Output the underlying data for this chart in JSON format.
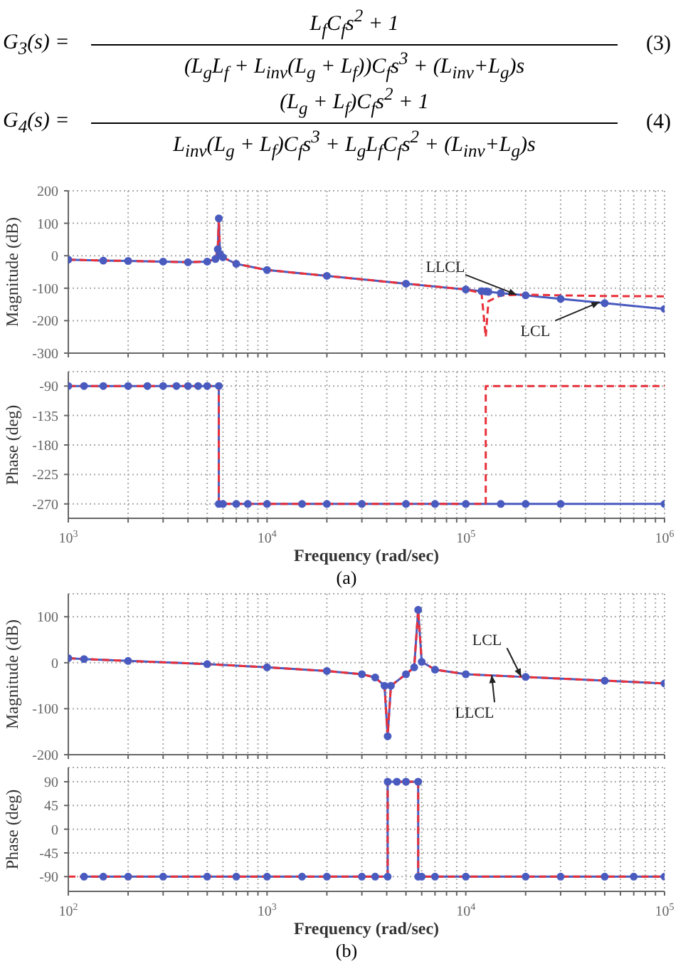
{
  "chart_data": [
    {
      "type": "line",
      "ylabel": "Magnitude (dB)",
      "log": "x",
      "grid": true,
      "tick_labels": "y",
      "xlim": [
        1000,
        1000000
      ],
      "ylim": [
        -300,
        200
      ],
      "yticks": [
        -300,
        -200,
        -100,
        0,
        100,
        200
      ],
      "xticks": [
        {
          "value": 1000,
          "label": null
        },
        {
          "value": 2000,
          "label": null
        },
        {
          "value": 3000,
          "label": null
        },
        {
          "value": 4000,
          "label": null
        },
        {
          "value": 5000,
          "label": null
        },
        {
          "value": 6000,
          "label": null
        },
        {
          "value": 7000,
          "label": null
        },
        {
          "value": 8000,
          "label": null
        },
        {
          "value": 9000,
          "label": null
        },
        {
          "value": 10000,
          "label": null
        },
        {
          "value": 20000,
          "label": null
        },
        {
          "value": 30000,
          "label": null
        },
        {
          "value": 40000,
          "label": null
        },
        {
          "value": 50000,
          "label": null
        },
        {
          "value": 60000,
          "label": null
        },
        {
          "value": 70000,
          "label": null
        },
        {
          "value": 80000,
          "label": null
        },
        {
          "value": 90000,
          "label": null
        },
        {
          "value": 100000,
          "label": null
        },
        {
          "value": 200000,
          "label": null
        },
        {
          "value": 300000,
          "label": null
        },
        {
          "value": 400000,
          "label": null
        },
        {
          "value": 500000,
          "label": null
        },
        {
          "value": 600000,
          "label": null
        },
        {
          "value": 700000,
          "label": null
        },
        {
          "value": 800000,
          "label": null
        },
        {
          "value": 900000,
          "label": null
        },
        {
          "value": 1000000,
          "label": null
        }
      ],
      "series": [
        {
          "color": "#4a5bbf",
          "line_style": "solid",
          "marker": "circle",
          "x": [
            1000,
            1500,
            2000,
            3000,
            4000,
            5000,
            5500,
            5650,
            5720,
            5800,
            6000,
            7000,
            10000,
            20000,
            50000,
            100000,
            120000,
            126000,
            130000,
            150000,
            200000,
            300000,
            500000,
            1000000
          ],
          "values": [
            -12,
            -15,
            -16,
            -18,
            -20,
            -18,
            -10,
            20,
            115,
            5,
            -5,
            -25,
            -44,
            -62,
            -86,
            -104,
            -109,
            -110,
            -111,
            -115,
            -122,
            -133,
            -146,
            -164
          ]
        },
        {
          "color": "#e8303a",
          "line_style": "dashed",
          "marker": "none",
          "x": [
            1000,
            1500,
            2000,
            3000,
            4000,
            5000,
            5500,
            5650,
            5720,
            5800,
            6000,
            7000,
            10000,
            20000,
            50000,
            100000,
            120000,
            126000,
            130000,
            150000,
            200000,
            300000,
            500000,
            1000000
          ],
          "values": [
            -12,
            -15,
            -16,
            -18,
            -20,
            -18,
            -10,
            20,
            115,
            5,
            -5,
            -25,
            -44,
            -62,
            -86,
            -104,
            -115,
            -250,
            -140,
            -122,
            -120,
            -122,
            -124,
            -125
          ]
        }
      ],
      "annotations": [
        "G$_{3}$(s) =",
        "L$_{f}$C$_{f}$s$^{2}$ + 1",
        "(L$_{g}$L$_{f}$ + L$_{inv}$(L$_{g}$ + L$_{f}$))C$_{f}$s$^{3}$ + (L$_{inv}$+L$_{g}$)s",
        "(3)",
        "G$_{4}$(s) =",
        "(L$_{g}$ + L$_{f}$)C$_{f}$s$^{2}$ + 1",
        "L$_{inv}$(L$_{g}$ + L$_{f}$)C$_{f}$s$^{3}$ + L$_{g}$L$_{f}$C$_{f}$s$^{2}$ + (L$_{inv}$+L$_{g}$)s",
        "(4)",
        {
          "text": "LLCL",
          "x": 180000,
          "y": -120
        },
        {
          "text": "LCL",
          "x": 470000,
          "y": -143
        }
      ]
    },
    {
      "type": "line",
      "ylabel": "Phase (deg)",
      "xlabel": "Frequency  (rad/sec)",
      "log": "x",
      "grid": true,
      "xlim": [
        1000,
        1000000
      ],
      "ylim": [
        -292,
        -68
      ],
      "yticks": [
        -270,
        -225,
        -180,
        -135,
        -90
      ],
      "xticks": [
        {
          "value": 1000,
          "label": "10$^{3}$"
        },
        {
          "value": 2000,
          "label": null
        },
        {
          "value": 3000,
          "label": null
        },
        {
          "value": 4000,
          "label": null
        },
        {
          "value": 5000,
          "label": null
        },
        {
          "value": 6000,
          "label": null
        },
        {
          "value": 7000,
          "label": null
        },
        {
          "value": 8000,
          "label": null
        },
        {
          "value": 9000,
          "label": null
        },
        {
          "value": 10000,
          "label": "10$^{4}$"
        },
        {
          "value": 20000,
          "label": null
        },
        {
          "value": 30000,
          "label": null
        },
        {
          "value": 40000,
          "label": null
        },
        {
          "value": 50000,
          "label": null
        },
        {
          "value": 60000,
          "label": null
        },
        {
          "value": 70000,
          "label": null
        },
        {
          "value": 80000,
          "label": null
        },
        {
          "value": 90000,
          "label": null
        },
        {
          "value": 100000,
          "label": "10$^{5}$"
        },
        {
          "value": 200000,
          "label": null
        },
        {
          "value": 300000,
          "label": null
        },
        {
          "value": 400000,
          "label": null
        },
        {
          "value": 500000,
          "label": null
        },
        {
          "value": 600000,
          "label": null
        },
        {
          "value": 700000,
          "label": null
        },
        {
          "value": 800000,
          "label": null
        },
        {
          "value": 900000,
          "label": null
        },
        {
          "value": 1000000,
          "label": "10$^{6}$"
        }
      ],
      "series": [
        {
          "color": "#4a5bbf",
          "line_style": "solid",
          "marker": "circle",
          "x": [
            1000,
            1200,
            1500,
            2000,
            2500,
            3000,
            3500,
            4000,
            4500,
            5000,
            5720,
            5720,
            6000,
            7000,
            8000,
            10000,
            15000,
            20000,
            30000,
            50000,
            70000,
            100000,
            150000,
            200000,
            300000,
            1000000
          ],
          "values": [
            -90,
            -90,
            -90,
            -90,
            -90,
            -90,
            -90,
            -90,
            -90,
            -90,
            -90,
            -270,
            -270,
            -270,
            -270,
            -270,
            -270,
            -270,
            -270,
            -270,
            -270,
            -270,
            -270,
            -270,
            -270,
            -270
          ]
        },
        {
          "color": "#e8303a",
          "line_style": "dashed",
          "marker": "none",
          "x": [
            1000,
            5720,
            5720,
            126000,
            126000,
            1000000
          ],
          "values": [
            -90,
            -90,
            -270,
            -270,
            -90,
            -90
          ]
        }
      ],
      "annotations": [
        "(a)"
      ]
    },
    {
      "type": "line",
      "ylabel": "Magnitude (dB)",
      "log": "x",
      "grid": true,
      "tick_labels": "y",
      "xlim": [
        100,
        100000
      ],
      "ylim": [
        -200,
        150
      ],
      "yticks": [
        -200,
        -100,
        0,
        100
      ],
      "xticks": [
        {
          "value": 100,
          "label": null
        },
        {
          "value": 200,
          "label": null
        },
        {
          "value": 300,
          "label": null
        },
        {
          "value": 400,
          "label": null
        },
        {
          "value": 500,
          "label": null
        },
        {
          "value": 600,
          "label": null
        },
        {
          "value": 700,
          "label": null
        },
        {
          "value": 800,
          "label": null
        },
        {
          "value": 900,
          "label": null
        },
        {
          "value": 1000,
          "label": null
        },
        {
          "value": 2000,
          "label": null
        },
        {
          "value": 3000,
          "label": null
        },
        {
          "value": 4000,
          "label": null
        },
        {
          "value": 5000,
          "label": null
        },
        {
          "value": 6000,
          "label": null
        },
        {
          "value": 7000,
          "label": null
        },
        {
          "value": 8000,
          "label": null
        },
        {
          "value": 9000,
          "label": null
        },
        {
          "value": 10000,
          "label": null
        },
        {
          "value": 20000,
          "label": null
        },
        {
          "value": 30000,
          "label": null
        },
        {
          "value": 40000,
          "label": null
        },
        {
          "value": 50000,
          "label": null
        },
        {
          "value": 60000,
          "label": null
        },
        {
          "value": 70000,
          "label": null
        },
        {
          "value": 80000,
          "label": null
        },
        {
          "value": 90000,
          "label": null
        },
        {
          "value": 100000,
          "label": null
        }
      ],
      "series": [
        {
          "color": "#4a5bbf",
          "line_style": "solid",
          "marker": "circle",
          "x": [
            100,
            120,
            200,
            500,
            1000,
            2000,
            3000,
            3500,
            3900,
            4045,
            4200,
            5000,
            5500,
            5760,
            6000,
            7000,
            10000,
            20000,
            50000,
            100000
          ],
          "values": [
            10,
            8,
            4,
            -3,
            -10,
            -18,
            -25,
            -32,
            -50,
            -160,
            -50,
            -25,
            -10,
            115,
            2,
            -15,
            -25,
            -31,
            -39,
            -45
          ]
        },
        {
          "color": "#e8303a",
          "line_style": "dashed",
          "marker": "none",
          "x": [
            100,
            120,
            200,
            500,
            1000,
            2000,
            3000,
            3500,
            3900,
            4045,
            4200,
            5000,
            5500,
            5760,
            6000,
            7000,
            10000,
            20000,
            50000,
            100000
          ],
          "values": [
            10,
            8,
            4,
            -3,
            -10,
            -18,
            -25,
            -32,
            -50,
            -160,
            -50,
            -25,
            -10,
            115,
            2,
            -15,
            -25,
            -31,
            -39,
            -45
          ]
        }
      ],
      "annotations": [
        {
          "text": "LCL",
          "x": 19000,
          "y": -30
        },
        {
          "text": "LLCL",
          "x": 13500,
          "y": -27
        }
      ]
    },
    {
      "type": "line",
      "ylabel": "Phase (deg)",
      "xlabel": "Frequency  (rad/sec)",
      "log": "x",
      "grid": true,
      "xlim": [
        100,
        100000
      ],
      "ylim": [
        -118,
        117
      ],
      "yticks": [
        -90,
        -45,
        0,
        45,
        90
      ],
      "xticks": [
        {
          "value": 100,
          "label": "10$^{2}$"
        },
        {
          "value": 200,
          "label": null
        },
        {
          "value": 300,
          "label": null
        },
        {
          "value": 400,
          "label": null
        },
        {
          "value": 500,
          "label": null
        },
        {
          "value": 600,
          "label": null
        },
        {
          "value": 700,
          "label": null
        },
        {
          "value": 800,
          "label": null
        },
        {
          "value": 900,
          "label": null
        },
        {
          "value": 1000,
          "label": "10$^{3}$"
        },
        {
          "value": 2000,
          "label": null
        },
        {
          "value": 3000,
          "label": null
        },
        {
          "value": 4000,
          "label": null
        },
        {
          "value": 5000,
          "label": null
        },
        {
          "value": 6000,
          "label": null
        },
        {
          "value": 7000,
          "label": null
        },
        {
          "value": 8000,
          "label": null
        },
        {
          "value": 9000,
          "label": null
        },
        {
          "value": 10000,
          "label": "10$^{4}$"
        },
        {
          "value": 20000,
          "label": null
        },
        {
          "value": 30000,
          "label": null
        },
        {
          "value": 40000,
          "label": null
        },
        {
          "value": 50000,
          "label": null
        },
        {
          "value": 60000,
          "label": null
        },
        {
          "value": 70000,
          "label": null
        },
        {
          "value": 80000,
          "label": null
        },
        {
          "value": 90000,
          "label": null
        },
        {
          "value": 100000,
          "label": "10$^{5}$"
        }
      ],
      "series": [
        {
          "color": "#4a5bbf",
          "line_style": "solid",
          "marker": "circle",
          "x": [
            120,
            150,
            200,
            300,
            500,
            700,
            1000,
            1500,
            2000,
            3000,
            3500,
            4045,
            4045,
            4500,
            5000,
            5760,
            5760,
            6000,
            7000,
            10000,
            20000,
            30000,
            50000,
            70000,
            100000
          ],
          "values": [
            -90,
            -90,
            -90,
            -90,
            -90,
            -90,
            -90,
            -90,
            -90,
            -90,
            -90,
            -90,
            90,
            90,
            90,
            90,
            -90,
            -90,
            -90,
            -90,
            -90,
            -90,
            -90,
            -90,
            -90
          ]
        },
        {
          "color": "#e8303a",
          "line_style": "dashed",
          "marker": "none",
          "x": [
            100,
            4045,
            4045,
            5760,
            5760,
            100000
          ],
          "values": [
            -90,
            -90,
            90,
            90,
            -90,
            -90
          ]
        }
      ],
      "annotations": [
        "(b)"
      ]
    }
  ]
}
